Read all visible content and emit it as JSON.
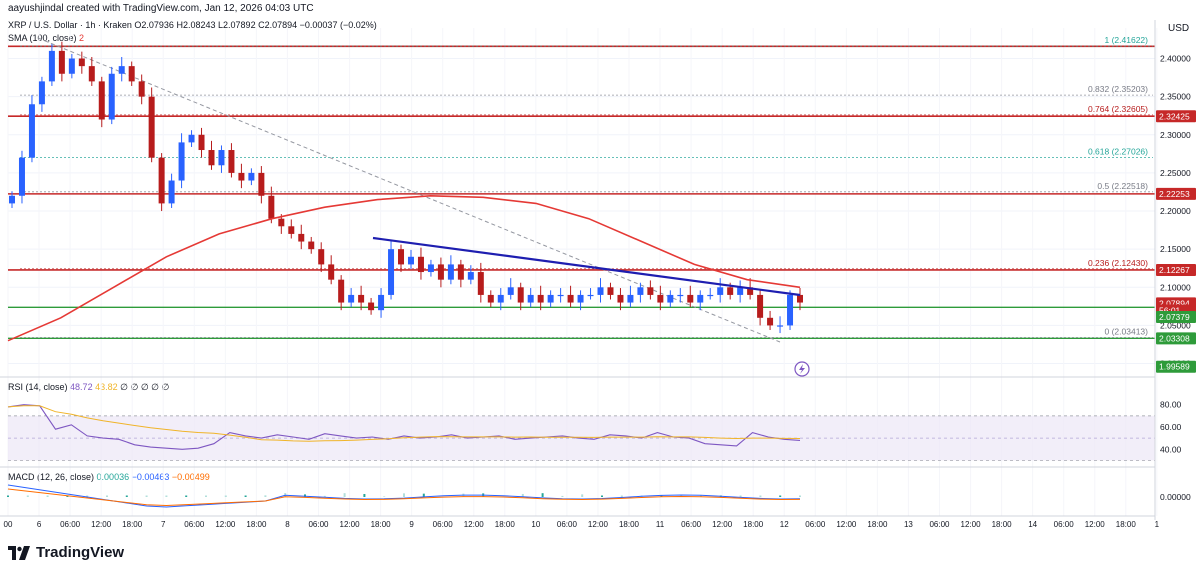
{
  "header": {
    "created_by": "aayushjindal created with TradingView.com, Jan 12, 2026 04:03 UTC"
  },
  "symbol": {
    "title": "XRP / U.S. Dollar · 1h · Kraken",
    "open": "O2.07936",
    "high": "H2.08243",
    "low": "L2.07892",
    "close": "C2.07894",
    "change": "−0.00037 (−0.02%)"
  },
  "sma": {
    "label": "SMA (100, close)",
    "value": "2"
  },
  "rsi": {
    "label": "RSI (14, close)",
    "value": "48.72",
    "ma": "43.82",
    "rest": "∅  ∅  ∅  ∅  ∅"
  },
  "macd": {
    "label": "MACD (12, 26, close)",
    "hist": "0.00036",
    "macd": "−0.00463",
    "signal": "−0.00499"
  },
  "currency": "USD",
  "brand": "TradingView",
  "colors": {
    "up": "#2962ff",
    "down": "#b71c1c",
    "sma": "#e53935",
    "trend": "#1e1eb0",
    "hline_red": "#c62828",
    "hline_green": "#2e9b3a",
    "rsi": "#7e57c2",
    "rsi_bg": "#ede7f6",
    "fib_grey": "#787b86",
    "fib_teal": "#26a69a"
  },
  "chart_data": {
    "type": "candlestick",
    "y_axis": {
      "ticks": [
        "2.40000",
        "2.35000",
        "2.30000",
        "2.25000",
        "2.20000",
        "2.15000",
        "2.10000",
        "2.05000",
        "2.00000"
      ],
      "range": [
        1.985,
        2.44
      ]
    },
    "x_axis": {
      "ticks": [
        "00",
        "6",
        "06:00",
        "12:00",
        "18:00",
        "7",
        "06:00",
        "12:00",
        "18:00",
        "8",
        "06:00",
        "12:00",
        "18:00",
        "9",
        "06:00",
        "12:00",
        "18:00",
        "10",
        "06:00",
        "12:00",
        "18:00",
        "11",
        "06:00",
        "12:00",
        "18:00",
        "12",
        "06:00",
        "12:00",
        "18:00",
        "13",
        "06:00",
        "12:00",
        "18:00",
        "14",
        "06:00",
        "12:00",
        "18:00",
        "1"
      ]
    },
    "candle_closes": [
      2.22,
      2.27,
      2.34,
      2.37,
      2.41,
      2.38,
      2.4,
      2.39,
      2.37,
      2.32,
      2.38,
      2.39,
      2.37,
      2.35,
      2.27,
      2.21,
      2.24,
      2.29,
      2.3,
      2.28,
      2.26,
      2.28,
      2.25,
      2.24,
      2.25,
      2.22,
      2.19,
      2.18,
      2.17,
      2.16,
      2.15,
      2.13,
      2.11,
      2.08,
      2.09,
      2.08,
      2.07,
      2.09,
      2.15,
      2.13,
      2.14,
      2.12,
      2.13,
      2.11,
      2.13,
      2.11,
      2.12,
      2.09,
      2.08,
      2.09,
      2.1,
      2.08,
      2.09,
      2.08,
      2.09,
      2.09,
      2.08,
      2.09,
      2.09,
      2.1,
      2.09,
      2.08,
      2.09,
      2.1,
      2.09,
      2.08,
      2.09,
      2.09,
      2.08,
      2.09,
      2.09,
      2.1,
      2.09,
      2.1,
      2.09,
      2.06,
      2.05,
      2.05,
      2.09,
      2.08
    ],
    "sma_100": [
      2.03,
      2.06,
      2.1,
      2.14,
      2.17,
      2.19,
      2.205,
      2.215,
      2.22,
      2.218,
      2.21,
      2.19,
      2.16,
      2.13,
      2.11,
      2.1
    ],
    "price_labels": [
      {
        "value": "2.32425",
        "color": "#c62828",
        "level": 2.32425
      },
      {
        "value": "2.22253",
        "color": "#c62828",
        "level": 2.22253
      },
      {
        "value": "2.12267",
        "color": "#c62828",
        "level": 2.12267
      },
      {
        "value": "2.07894",
        "color": "#c62828",
        "level": 2.07894
      },
      {
        "value": "56:01",
        "color": "#c62828",
        "level": 2.0696
      },
      {
        "value": "2.07379",
        "color": "#2e9b3a",
        "level": 2.061
      },
      {
        "value": "2.03308",
        "color": "#2e9b3a",
        "level": 2.03308
      },
      {
        "value": "1.99589",
        "color": "#2e9b3a",
        "level": 1.99589
      }
    ],
    "fib_levels": [
      {
        "label": "1 (2.41622)",
        "level": 2.41622,
        "color": "#26a69a"
      },
      {
        "label": "0.832 (2.35203)",
        "level": 2.35203,
        "color": "#787b86"
      },
      {
        "label": "0.764 (2.32605)",
        "level": 2.32605,
        "color": "#b71c1c"
      },
      {
        "label": "0.618 (2.27026)",
        "level": 2.27026,
        "color": "#26a69a"
      },
      {
        "label": "0.5 (2.22518)",
        "level": 2.22518,
        "color": "#787b86"
      },
      {
        "label": "0.236 (2.12430)",
        "level": 2.1243,
        "color": "#b71c1c"
      },
      {
        "label": "0 (2.03413)",
        "level": 2.03413,
        "color": "#787b86"
      }
    ],
    "rsi_ticks": [
      "80.00",
      "60.00",
      "40.00"
    ],
    "rsi_values": [
      78,
      80,
      79,
      58,
      62,
      52,
      50,
      49,
      44,
      42,
      41,
      40,
      41,
      45,
      55,
      52,
      50,
      53,
      51,
      49,
      54,
      52,
      50,
      51,
      49,
      52,
      50,
      51,
      53,
      50,
      51,
      52,
      49,
      50,
      51,
      52,
      50,
      49,
      53,
      52,
      50,
      55,
      51,
      50,
      45,
      44,
      43,
      55,
      51,
      49,
      48
    ],
    "macd_ticks": [
      "0.00000"
    ],
    "rsi_range": [
      25,
      95
    ],
    "macd_range": [
      -0.05,
      0.05
    ]
  }
}
